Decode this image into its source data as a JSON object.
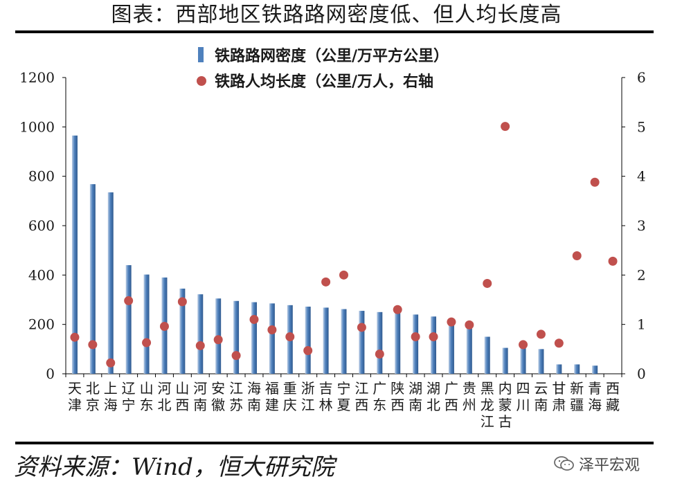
{
  "title": "图表：西部地区铁路路网密度低、但人均长度高",
  "source": "资料来源：Wind，恒大研究院",
  "watermark": "泽平宏观",
  "watermark_icon": "wechat-icon",
  "colors": {
    "bar": "#4f81bd",
    "bar_light": "#b8cce4",
    "dot": "#c0504d"
  },
  "chart_data": {
    "type": "bar",
    "categories": [
      "天津",
      "北京",
      "上海",
      "辽宁",
      "山东",
      "河北",
      "山西",
      "河南",
      "安徽",
      "江苏",
      "海南",
      "福建",
      "重庆",
      "浙江",
      "吉林",
      "宁夏",
      "江西",
      "广东",
      "陕西",
      "湖南",
      "湖北",
      "广西",
      "贵州",
      "黑龙江",
      "内蒙古",
      "四川",
      "云南",
      "甘肃",
      "新疆",
      "青海",
      "西藏"
    ],
    "category_lines": [
      [
        "天",
        "津"
      ],
      [
        "北",
        "京"
      ],
      [
        "上",
        "海"
      ],
      [
        "辽",
        "宁"
      ],
      [
        "山",
        "东"
      ],
      [
        "河",
        "北"
      ],
      [
        "山",
        "西"
      ],
      [
        "河",
        "南"
      ],
      [
        "安",
        "徽"
      ],
      [
        "江",
        "苏"
      ],
      [
        "海",
        "南"
      ],
      [
        "福",
        "建"
      ],
      [
        "重",
        "庆"
      ],
      [
        "浙",
        "江"
      ],
      [
        "吉",
        "林"
      ],
      [
        "宁",
        "夏"
      ],
      [
        "江",
        "西"
      ],
      [
        "广",
        "东"
      ],
      [
        "陕",
        "西"
      ],
      [
        "湖",
        "南"
      ],
      [
        "湖",
        "北"
      ],
      [
        "广",
        "西"
      ],
      [
        "贵",
        "州"
      ],
      [
        "黑",
        "龙",
        "江"
      ],
      [
        "内",
        "蒙",
        "古"
      ],
      [
        "四",
        "川"
      ],
      [
        "云",
        "南"
      ],
      [
        "甘",
        "肃"
      ],
      [
        "新",
        "疆"
      ],
      [
        "青",
        "海"
      ],
      [
        "西",
        "藏"
      ]
    ],
    "series": [
      {
        "name": "铁路路网密度（公里/万平方公里）",
        "kind": "bar",
        "axis": "left",
        "values": [
          965,
          768,
          735,
          440,
          402,
          390,
          345,
          322,
          305,
          295,
          290,
          285,
          278,
          272,
          268,
          262,
          255,
          250,
          248,
          240,
          232,
          210,
          195,
          150,
          105,
          110,
          100,
          38,
          38,
          33,
          0
        ]
      },
      {
        "name": "铁路人均长度（公里/万人，右轴",
        "kind": "scatter",
        "axis": "right",
        "values": [
          0.74,
          0.59,
          0.22,
          1.48,
          0.63,
          0.96,
          1.46,
          0.57,
          0.69,
          0.37,
          1.1,
          0.89,
          0.75,
          0.47,
          1.86,
          2.0,
          0.94,
          0.4,
          1.3,
          0.75,
          0.75,
          1.05,
          0.99,
          1.83,
          5.01,
          0.59,
          0.8,
          0.62,
          2.39,
          3.88,
          2.28
        ]
      }
    ],
    "y_left": {
      "min": 0,
      "max": 1200,
      "ticks": [
        0,
        200,
        400,
        600,
        800,
        1000,
        1200
      ]
    },
    "y_right": {
      "min": 0,
      "max": 6,
      "ticks": [
        0,
        1,
        2,
        3,
        4,
        5,
        6
      ]
    },
    "legend_position": "top-center",
    "grid": false
  }
}
